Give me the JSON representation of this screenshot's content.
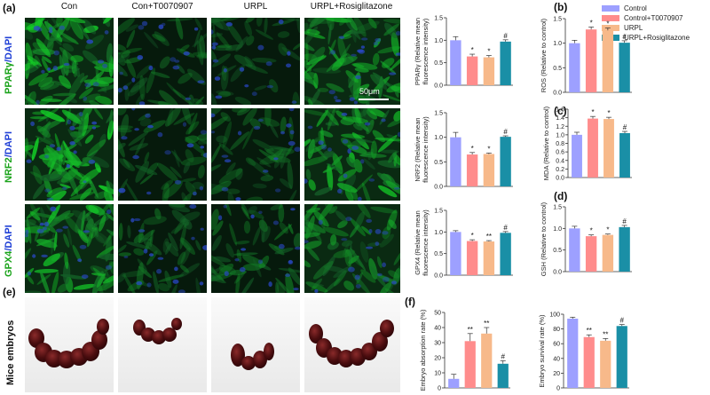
{
  "panel_labels": {
    "a": "(a)",
    "b": "(b)",
    "c": "(c)",
    "d": "(d)",
    "e": "(e)",
    "f": "(f)"
  },
  "columns": [
    "Con",
    "Con+T0070907",
    "URPL",
    "URPL+Rosiglitazone"
  ],
  "rows": [
    {
      "stain": "PPARγ",
      "sep": "/",
      "dapi": "DAPI"
    },
    {
      "stain": "NRF2",
      "sep": "/",
      "dapi": "DAPI"
    },
    {
      "stain": "GPX4",
      "sep": "/",
      "dapi": "DAPI"
    }
  ],
  "scale_bar": "50μm",
  "embryos_label": "Mice embryos",
  "colors": {
    "stain": "#1aa31a",
    "dapi": "#1f3fd6",
    "control": "#9da0ff",
    "t007": "#ff8c8c",
    "urpl": "#f7b98a",
    "rosi": "#1a8fa6"
  },
  "legend": [
    {
      "label": "Control",
      "color": "#9da0ff"
    },
    {
      "label": "Control+T0070907",
      "color": "#ff8c8c"
    },
    {
      "label": "URPL",
      "color": "#f7b98a"
    },
    {
      "label": "URPL+Rosiglitazone",
      "color": "#1a8fa6"
    }
  ],
  "chart_data": [
    {
      "id": "pparg",
      "type": "bar",
      "ylabel": [
        "PPARγ (Relative mean",
        "fluorescence intensity)"
      ],
      "ylim": [
        0,
        1.5
      ],
      "ticks": [
        "0.0",
        "0.5",
        "1.0",
        "1.5"
      ],
      "values": [
        1.0,
        0.64,
        0.62,
        0.97
      ],
      "errors": [
        0.08,
        0.05,
        0.04,
        0.04
      ],
      "marks": [
        "",
        "*",
        "*",
        "#"
      ]
    },
    {
      "id": "nrf2",
      "type": "bar",
      "ylabel": [
        "NRF2 (Relative mean",
        "fluorescence intensity)"
      ],
      "ylim": [
        0,
        1.5
      ],
      "ticks": [
        "0.0",
        "0.5",
        "1.0",
        "1.5"
      ],
      "values": [
        1.0,
        0.65,
        0.66,
        1.01
      ],
      "errors": [
        0.1,
        0.04,
        0.02,
        0.02
      ],
      "marks": [
        "",
        "*",
        "*",
        "#"
      ]
    },
    {
      "id": "gpx4",
      "type": "bar",
      "ylabel": [
        "GPX4 (Relative mean",
        "fluorescence intensity)"
      ],
      "ylim": [
        0,
        1.5
      ],
      "ticks": [
        "0.0",
        "0.5",
        "1.0",
        "1.5"
      ],
      "values": [
        1.0,
        0.79,
        0.78,
        0.98
      ],
      "errors": [
        0.03,
        0.03,
        0.02,
        0.03
      ],
      "marks": [
        "",
        "*",
        "**",
        "#"
      ]
    },
    {
      "id": "ros",
      "type": "bar",
      "ylabel": [
        "ROS (Relative to control)"
      ],
      "ylim": [
        0,
        1.5
      ],
      "ticks": [
        "0.0",
        "0.5",
        "1.0",
        "1.5"
      ],
      "values": [
        1.0,
        1.28,
        1.26,
        1.01
      ],
      "errors": [
        0.06,
        0.05,
        0.05,
        0.04
      ],
      "marks": [
        "",
        "*",
        "*",
        "#"
      ]
    },
    {
      "id": "mda",
      "type": "bar",
      "ylabel": [
        "MDA (Relative to control)"
      ],
      "ylim": [
        0,
        1.6
      ],
      "ticks": [
        "0.0",
        "0.2",
        "0.4",
        "0.6",
        "0.8",
        "1.0",
        "1.2",
        "1.4",
        "1.6"
      ],
      "values": [
        1.0,
        1.38,
        1.37,
        1.04
      ],
      "errors": [
        0.06,
        0.05,
        0.04,
        0.04
      ],
      "marks": [
        "",
        "*",
        "*",
        "#"
      ]
    },
    {
      "id": "gsh",
      "type": "bar",
      "ylabel": [
        "GSH (Relative to control)"
      ],
      "ylim": [
        0,
        1.5
      ],
      "ticks": [
        "0.0",
        "0.5",
        "1.0",
        "1.5"
      ],
      "values": [
        1.0,
        0.82,
        0.85,
        1.03
      ],
      "errors": [
        0.05,
        0.03,
        0.02,
        0.04
      ],
      "marks": [
        "",
        "*",
        "*",
        "#"
      ]
    },
    {
      "id": "absorption",
      "type": "bar",
      "ylabel": [
        "Embryo absorption rate (%)"
      ],
      "ylim": [
        0,
        50
      ],
      "ticks": [
        "0",
        "10",
        "20",
        "30",
        "40",
        "50"
      ],
      "values": [
        6,
        31,
        36,
        16
      ],
      "errors": [
        3,
        5,
        4,
        2
      ],
      "marks": [
        "",
        "**",
        "**",
        "#"
      ]
    },
    {
      "id": "survival",
      "type": "bar",
      "ylabel": [
        "Embryo survival rate (%)"
      ],
      "ylim": [
        0,
        100
      ],
      "ticks": [
        "0",
        "20",
        "40",
        "60",
        "80",
        "100"
      ],
      "values": [
        94,
        69,
        64,
        84
      ],
      "errors": [
        2,
        3,
        3,
        2
      ],
      "marks": [
        "",
        "**",
        "**",
        "#"
      ]
    }
  ]
}
